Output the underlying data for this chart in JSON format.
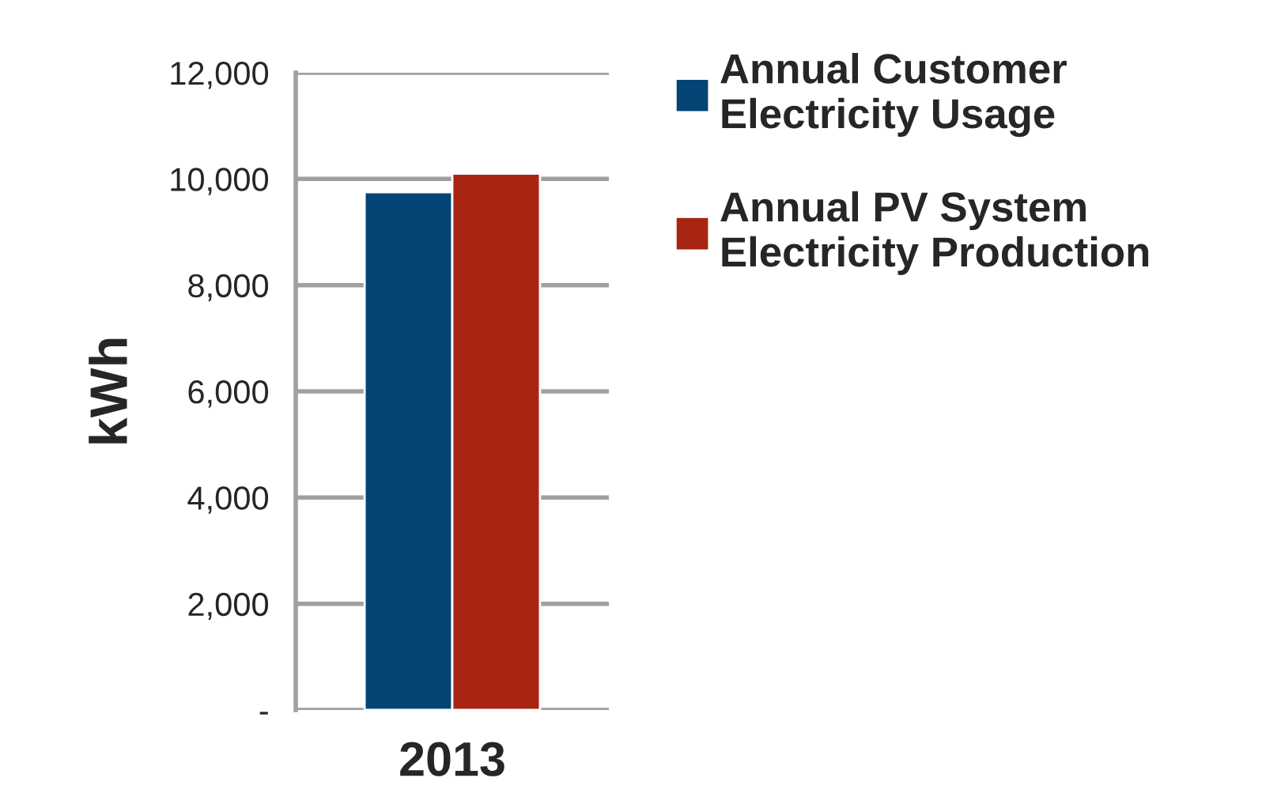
{
  "chart_data": {
    "type": "bar",
    "categories": [
      "2013"
    ],
    "ylabel": "kWh",
    "series": [
      {
        "name": "Annual Customer Electricity Usage",
        "color": "#034575",
        "values": [
          9750
        ]
      },
      {
        "name": "Annual PV System Electricity Production",
        "color": "#a82513",
        "values": [
          10100
        ]
      }
    ],
    "ylim": [
      0,
      12000
    ],
    "yticks": [
      {
        "value": 0,
        "label": "-"
      },
      {
        "value": 2000,
        "label": "2,000"
      },
      {
        "value": 4000,
        "label": "4,000"
      },
      {
        "value": 6000,
        "label": "6,000"
      },
      {
        "value": 8000,
        "label": "8,000"
      },
      {
        "value": 10000,
        "label": "10,000"
      },
      {
        "value": 12000,
        "label": "12,000"
      }
    ],
    "grid": "y",
    "legend": "right"
  }
}
